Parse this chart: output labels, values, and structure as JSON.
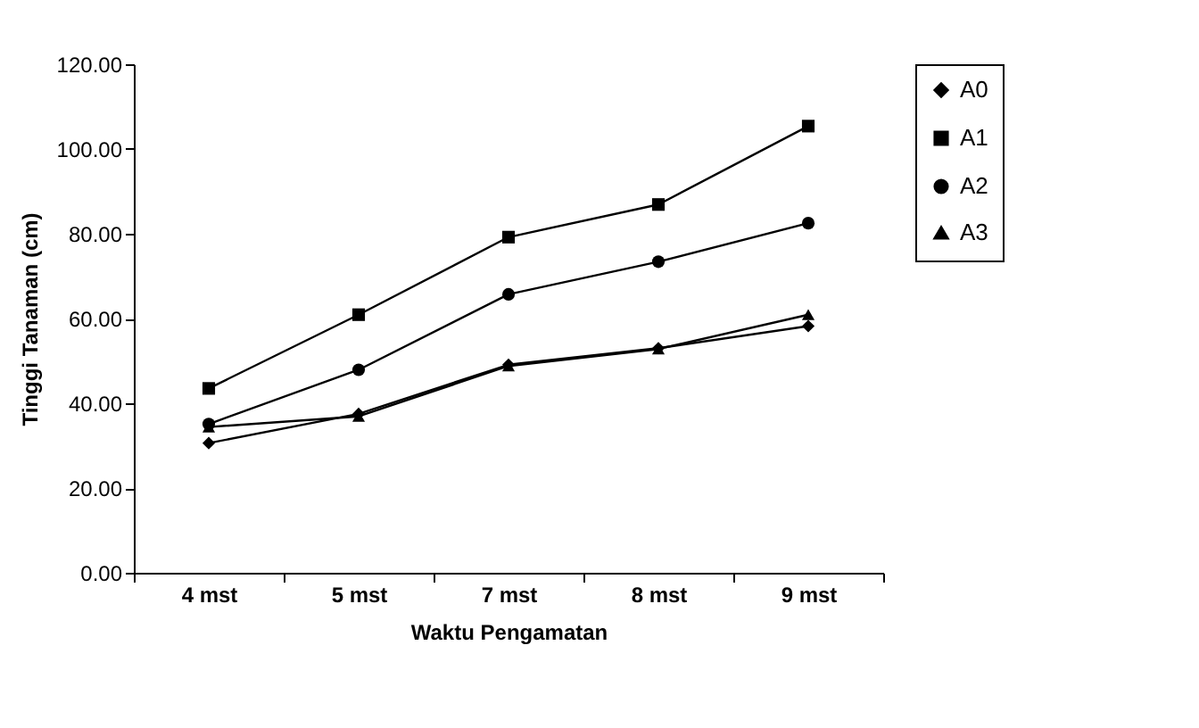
{
  "chart_data": {
    "type": "line",
    "xlabel": "Waktu Pengamatan",
    "ylabel": "Tinggi Tanaman (cm)",
    "categories": [
      "4 mst",
      "5 mst",
      "7 mst",
      "8 mst",
      "9 mst"
    ],
    "series": [
      {
        "name": "A0",
        "color": "#000000",
        "marker": "diamond",
        "values": [
          30.6,
          37.5,
          49.1,
          53.0,
          58.2
        ]
      },
      {
        "name": "A1",
        "color": "#000000",
        "marker": "square",
        "values": [
          43.5,
          60.9,
          79.2,
          86.9,
          105.4
        ]
      },
      {
        "name": "A2",
        "color": "#000000",
        "marker": "circle",
        "values": [
          35.1,
          47.9,
          65.7,
          73.4,
          82.5
        ]
      },
      {
        "name": "A3",
        "color": "#000000",
        "marker": "triangle",
        "values": [
          34.4,
          36.9,
          48.8,
          52.8,
          60.9
        ]
      }
    ],
    "ylim": [
      0,
      120
    ],
    "yticks": [
      {
        "value": 0,
        "label": "0.00"
      },
      {
        "value": 20,
        "label": "20.00"
      },
      {
        "value": 40,
        "label": "40.00"
      },
      {
        "value": 60,
        "label": "60.00"
      },
      {
        "value": 80,
        "label": "80.00"
      },
      {
        "value": 100,
        "label": "100.00"
      },
      {
        "value": 120,
        "label": "120.00"
      }
    ],
    "grid": false,
    "legend": "right",
    "line_style": "solid"
  }
}
